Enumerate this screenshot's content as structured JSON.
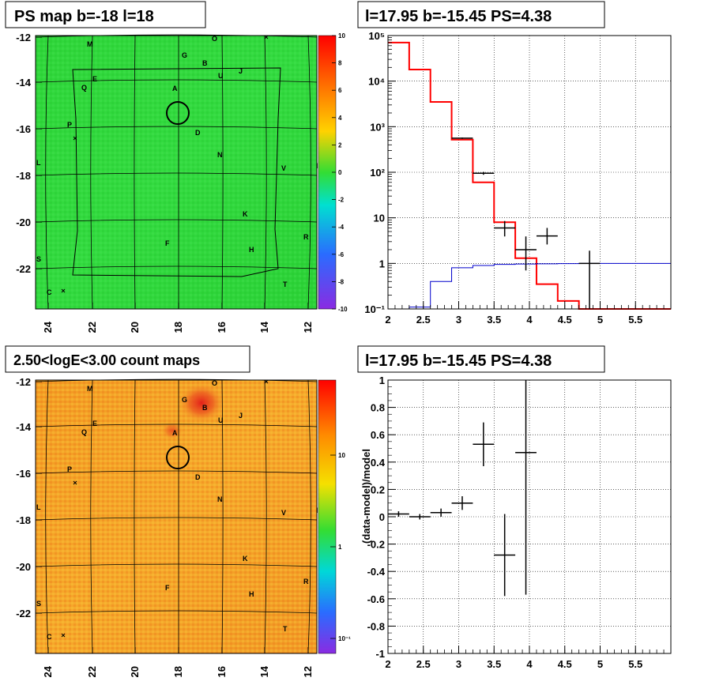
{
  "titles": {
    "top_left": "PS map b=-18 l=18",
    "top_right": "l=17.95 b=-15.45 PS=4.38",
    "bottom_left": "2.50<logE<3.00 count maps",
    "bottom_right": "l=17.95 b=-15.45 PS=4.38"
  },
  "maps": {
    "x_ticks": [
      "24",
      "22",
      "20",
      "18",
      "16",
      "14",
      "12"
    ],
    "y_ticks": [
      "-12",
      "-14",
      "-16",
      "-18",
      "-20",
      "-22"
    ],
    "source_labels": [
      "M",
      "O",
      "G",
      "B",
      "U",
      "J",
      "E",
      "Q",
      "A",
      "D",
      "P",
      "N",
      "V",
      "K",
      "R",
      "F",
      "H",
      "S",
      "T",
      "C",
      "L",
      "I"
    ],
    "top_colorbar_ticks": [
      "10",
      "8",
      "6",
      "4",
      "2",
      "0",
      "-2",
      "-4",
      "-6",
      "-8",
      "-10"
    ],
    "bottom_colorbar_ticks": [
      "10",
      "1",
      "10⁻¹"
    ]
  },
  "chart_data": [
    {
      "type": "line",
      "title": "l=17.95 b=-15.45 PS=4.38",
      "xlim": [
        2,
        6
      ],
      "ylim": [
        0.1,
        100000
      ],
      "yscale": "log",
      "x_ticks": [
        "2",
        "2.5",
        "3",
        "3.5",
        "4",
        "4.5",
        "5",
        "5.5"
      ],
      "y_ticks": [
        "10⁻¹",
        "1",
        "10",
        "10²",
        "10³",
        "10⁴",
        "10⁵"
      ],
      "grid": true,
      "series": [
        {
          "color": "#ff0000",
          "style": "step",
          "bin_edges": [
            2.0,
            2.3,
            2.6,
            2.9,
            3.2,
            3.5,
            3.8,
            4.1,
            4.4,
            4.7,
            5.0,
            6.0
          ],
          "values": [
            70000,
            18000,
            3500,
            520,
            60,
            8,
            1.3,
            0.35,
            0.15,
            0.1,
            0.1
          ]
        },
        {
          "color": "#0000cc",
          "style": "step",
          "bin_edges": [
            2.0,
            2.3,
            2.6,
            2.9,
            3.2,
            3.5,
            3.8,
            4.1,
            4.4,
            4.7,
            5.0,
            6.0
          ],
          "values": [
            0.09,
            0.11,
            0.4,
            0.8,
            0.9,
            0.95,
            0.97,
            0.98,
            0.99,
            1.0,
            1.0
          ]
        },
        {
          "color": "#000000",
          "style": "errorbar",
          "points": [
            {
              "x": 3.05,
              "xerr": 0.15,
              "y": 560,
              "ylo": 540,
              "yhi": 580
            },
            {
              "x": 3.35,
              "xerr": 0.15,
              "y": 95,
              "ylo": 88,
              "yhi": 102
            },
            {
              "x": 3.65,
              "xerr": 0.15,
              "y": 6,
              "ylo": 3.9,
              "yhi": 8.5
            },
            {
              "x": 3.95,
              "xerr": 0.15,
              "y": 2,
              "ylo": 0.7,
              "yhi": 3.9
            },
            {
              "x": 4.25,
              "xerr": 0.15,
              "y": 4,
              "ylo": 2.6,
              "yhi": 6
            },
            {
              "x": 4.85,
              "xerr": 0.15,
              "y": 1,
              "ylo": 0.1,
              "yhi": 1.9
            }
          ]
        }
      ]
    },
    {
      "type": "scatter",
      "title": "l=17.95 b=-15.45 PS=4.38",
      "ylabel": "(data-model)/model",
      "xlim": [
        2,
        6
      ],
      "ylim": [
        -1,
        1
      ],
      "x_ticks": [
        "2",
        "2.5",
        "3",
        "3.5",
        "4",
        "4.5",
        "5",
        "5.5"
      ],
      "y_ticks": [
        "1",
        "0.8",
        "0.6",
        "0.4",
        "0.2",
        "0",
        "-0.2",
        "-0.4",
        "-0.6",
        "-0.8",
        "-1"
      ],
      "grid": true,
      "series": [
        {
          "color": "#000000",
          "style": "errorbar",
          "points": [
            {
              "x": 2.15,
              "xerr": 0.15,
              "y": 0.02,
              "ylo": 0.0,
              "yhi": 0.04
            },
            {
              "x": 2.45,
              "xerr": 0.15,
              "y": 0.0,
              "ylo": -0.02,
              "yhi": 0.02
            },
            {
              "x": 2.75,
              "xerr": 0.15,
              "y": 0.03,
              "ylo": 0.0,
              "yhi": 0.06
            },
            {
              "x": 3.05,
              "xerr": 0.15,
              "y": 0.1,
              "ylo": 0.05,
              "yhi": 0.15
            },
            {
              "x": 3.35,
              "xerr": 0.15,
              "y": 0.53,
              "ylo": 0.37,
              "yhi": 0.69
            },
            {
              "x": 3.65,
              "xerr": 0.15,
              "y": -0.28,
              "ylo": -0.58,
              "yhi": 0.02
            },
            {
              "x": 3.95,
              "xerr": 0.15,
              "y": 0.47,
              "ylo": -0.57,
              "yhi": 1.0
            }
          ]
        }
      ]
    }
  ]
}
